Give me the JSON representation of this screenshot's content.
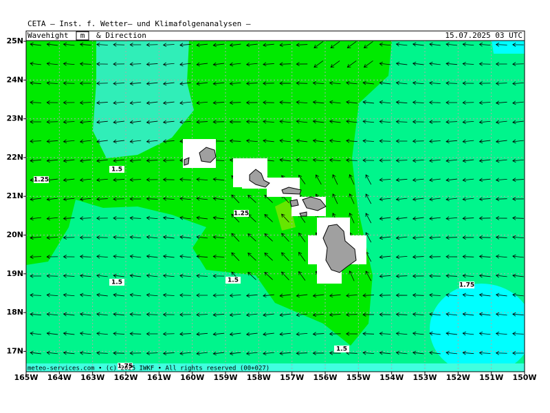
{
  "header": {
    "title": "CETA — Inst. f. Wetter— und Klimafolgenanalysen —",
    "panel": "Wavehight",
    "unit": "m",
    "direction": "& Direction",
    "valid": "15.07.2025 03 UTC"
  },
  "axes": {
    "lat": [
      "25N",
      "24N",
      "23N",
      "22N",
      "21N",
      "20N",
      "19N",
      "18N",
      "17N"
    ],
    "lon": [
      "165W",
      "164W",
      "163W",
      "162W",
      "161W",
      "160W",
      "159W",
      "158W",
      "157W",
      "156W",
      "155W",
      "154W",
      "153W",
      "152W",
      "151W",
      "150W"
    ]
  },
  "contours": [
    "1.25",
    "1.5",
    "1.25",
    "1.5",
    "1.5",
    "1.75",
    "1.5",
    "1.75"
  ],
  "footer": "meteo-services.com • (c) 2025 IWKF • All rights reserved (00+027)"
}
